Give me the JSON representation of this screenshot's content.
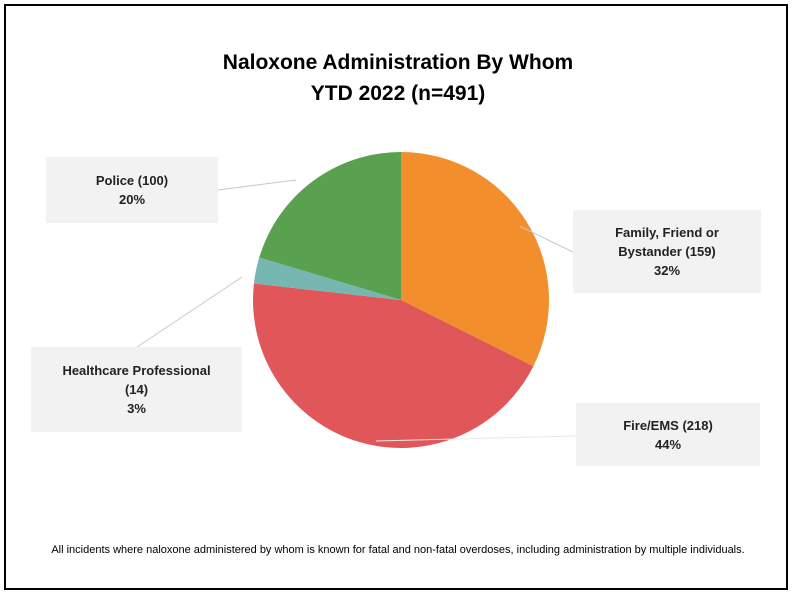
{
  "chart_data": {
    "type": "pie",
    "title": "Naloxone Administration By Whom",
    "subtitle": "YTD 2022 (n=491)",
    "slices": [
      {
        "name": "Family, Friend or Bystander",
        "count": 159,
        "percent": 32,
        "color": "#f28e2b",
        "label_lines": [
          "Family, Friend or",
          "Bystander (159)",
          "32%"
        ]
      },
      {
        "name": "Fire/EMS",
        "count": 218,
        "percent": 44,
        "color": "#e15759",
        "label_lines": [
          "Fire/EMS (218)",
          "44%"
        ]
      },
      {
        "name": "Healthcare Professional",
        "count": 14,
        "percent": 3,
        "color": "#76b7b2",
        "label_lines": [
          "Healthcare Professional",
          "(14)",
          "3%"
        ]
      },
      {
        "name": "Police",
        "count": 100,
        "percent": 20,
        "color": "#59a14f",
        "label_lines": [
          "Police (100)",
          "20%"
        ]
      }
    ],
    "legend": "none",
    "footnote": "All incidents where naloxone administered by whom is known for fatal and non-fatal overdoses, including administration by multiple individuals."
  }
}
